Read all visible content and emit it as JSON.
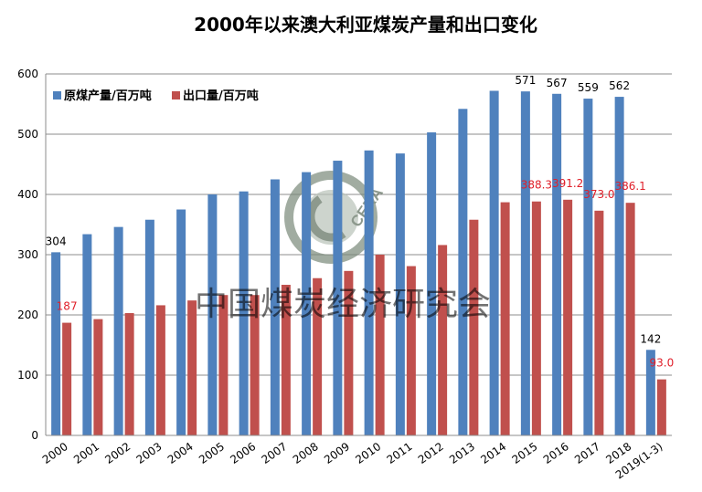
{
  "chart_data": {
    "type": "bar",
    "title": "2000年以来澳大利亚煤炭产量和出口变化",
    "categories": [
      "2000",
      "2001",
      "2002",
      "2003",
      "2004",
      "2005",
      "2006",
      "2007",
      "2008",
      "2009",
      "2010",
      "2011",
      "2012",
      "2013",
      "2014",
      "2015",
      "2016",
      "2017",
      "2018",
      "2019(1-3)"
    ],
    "series": [
      {
        "name": "原煤产量/百万吨",
        "color": "#4f81bd",
        "values": [
          304,
          334,
          346,
          358,
          375,
          400,
          405,
          425,
          437,
          456,
          473,
          468,
          503,
          542,
          572,
          571,
          567,
          559,
          562,
          142
        ]
      },
      {
        "name": "出口量/百万吨",
        "color": "#c0504d",
        "values": [
          187,
          193,
          203,
          216,
          224,
          233,
          233,
          250,
          261,
          273,
          300,
          281,
          316,
          358,
          387,
          388.3,
          391.2,
          373.0,
          386.1,
          93.0
        ]
      }
    ],
    "data_labels": {
      "production": [
        {
          "index": 0,
          "text": "304"
        },
        {
          "index": 15,
          "text": "571"
        },
        {
          "index": 16,
          "text": "567"
        },
        {
          "index": 17,
          "text": "559"
        },
        {
          "index": 18,
          "text": "562"
        },
        {
          "index": 19,
          "text": "142"
        }
      ],
      "export": [
        {
          "index": 0,
          "text": "187"
        },
        {
          "index": 15,
          "text": "388.3"
        },
        {
          "index": 16,
          "text": "391.2"
        },
        {
          "index": 17,
          "text": "373.0"
        },
        {
          "index": 18,
          "text": "386.1"
        },
        {
          "index": 19,
          "text": "93.0"
        }
      ]
    },
    "yticks": [
      0,
      100,
      200,
      300,
      400,
      500,
      600
    ],
    "ylim": [
      0,
      600
    ],
    "grid": true,
    "legend_position": "top-left"
  },
  "watermark": {
    "text": "中国煤炭经济研究会",
    "logo_text": "CERA"
  }
}
